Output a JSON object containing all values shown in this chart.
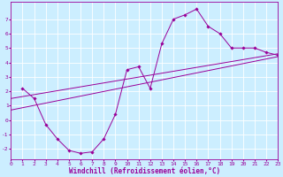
{
  "xlabel": "Windchill (Refroidissement éolien,°C)",
  "bg_color": "#cceeff",
  "grid_color": "#ffffff",
  "line_color": "#990099",
  "xlim": [
    0,
    23
  ],
  "ylim": [
    -2.7,
    8.2
  ],
  "xticks": [
    0,
    1,
    2,
    3,
    4,
    5,
    6,
    7,
    8,
    9,
    10,
    11,
    12,
    13,
    14,
    15,
    16,
    17,
    18,
    19,
    20,
    21,
    22,
    23
  ],
  "yticks": [
    -2,
    -1,
    0,
    1,
    2,
    3,
    4,
    5,
    6,
    7
  ],
  "series1_x": [
    1,
    2,
    3,
    4,
    5,
    6,
    7,
    8,
    9,
    10,
    11,
    12,
    13,
    14,
    15,
    16,
    17,
    18,
    19,
    20,
    21,
    22,
    23
  ],
  "series1_y": [
    2.2,
    1.5,
    -0.3,
    -1.3,
    -2.1,
    -2.3,
    -2.2,
    -1.3,
    0.4,
    3.5,
    3.7,
    2.2,
    5.3,
    7.0,
    7.3,
    7.7,
    6.5,
    6.0,
    5.0,
    5.0,
    5.0,
    4.7,
    4.5
  ],
  "line2_x": [
    0,
    23
  ],
  "line2_y": [
    1.5,
    4.6
  ],
  "line3_x": [
    0,
    23
  ],
  "line3_y": [
    0.7,
    4.4
  ],
  "tick_fontsize": 4.5,
  "xlabel_fontsize": 5.5,
  "marker_size": 1.8,
  "line_width": 0.7
}
